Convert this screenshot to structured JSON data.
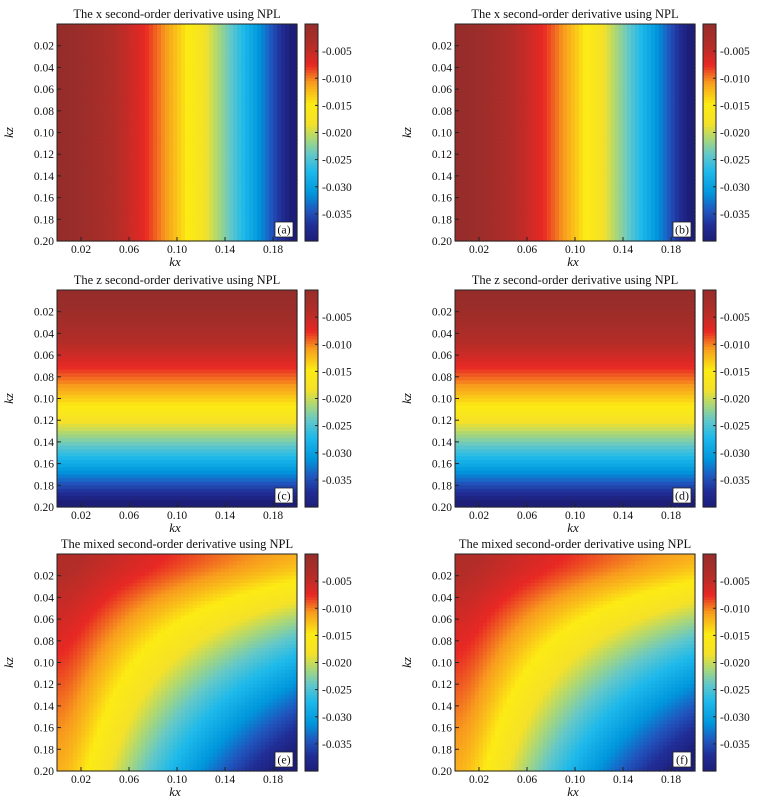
{
  "chart_data": [
    {
      "type": "heatmap",
      "title": "The x second-order derivative using NPL",
      "panel_label": "(a)",
      "variant": "x",
      "xlabel": "kx",
      "ylabel": "kz",
      "xlim": [
        0.0,
        0.2
      ],
      "ylim": [
        0.0,
        0.2
      ],
      "x_ticks": [
        0.02,
        0.06,
        0.1,
        0.14,
        0.18
      ],
      "y_ticks": [
        0.02,
        0.04,
        0.06,
        0.08,
        0.1,
        0.12,
        0.14,
        0.16,
        0.18,
        0.2
      ],
      "x_tick_labels": [
        "0.02",
        "0.06",
        "0.10",
        "0.14",
        "0.18"
      ],
      "y_tick_labels": [
        "0.02",
        "0.04",
        "0.06",
        "0.08",
        "0.10",
        "0.12",
        "0.14",
        "0.16",
        "0.18",
        "0.20"
      ],
      "y_axis_inverted": true,
      "value_range": [
        -0.04,
        0.0
      ],
      "colorbar_ticks": [
        -0.005,
        -0.01,
        -0.015,
        -0.02,
        -0.025,
        -0.03,
        -0.035
      ],
      "colorbar_tick_labels": [
        "-0.005",
        "-0.010",
        "-0.015",
        "-0.020",
        "-0.025",
        "-0.030",
        "-0.035"
      ],
      "colormap": "jet",
      "grid": false
    },
    {
      "type": "heatmap",
      "title": "The x second-order derivative using NPL",
      "panel_label": "(b)",
      "variant": "x",
      "xlabel": "kx",
      "ylabel": "kz",
      "xlim": [
        0.0,
        0.2
      ],
      "ylim": [
        0.0,
        0.2
      ],
      "x_ticks": [
        0.02,
        0.06,
        0.1,
        0.14,
        0.18
      ],
      "y_ticks": [
        0.02,
        0.04,
        0.06,
        0.08,
        0.1,
        0.12,
        0.14,
        0.16,
        0.18,
        0.2
      ],
      "x_tick_labels": [
        "0.02",
        "0.06",
        "0.10",
        "0.14",
        "0.18"
      ],
      "y_tick_labels": [
        "0.02",
        "0.04",
        "0.06",
        "0.08",
        "0.10",
        "0.12",
        "0.14",
        "0.16",
        "0.18",
        "0.20"
      ],
      "y_axis_inverted": true,
      "value_range": [
        -0.04,
        0.0
      ],
      "colorbar_ticks": [
        -0.005,
        -0.01,
        -0.015,
        -0.02,
        -0.025,
        -0.03,
        -0.035
      ],
      "colorbar_tick_labels": [
        "-0.005",
        "-0.010",
        "-0.015",
        "-0.020",
        "-0.025",
        "-0.030",
        "-0.035"
      ],
      "colormap": "jet",
      "grid": false
    },
    {
      "type": "heatmap",
      "title": "The z second-order derivative using NPL",
      "panel_label": "(c)",
      "variant": "z",
      "xlabel": "kx",
      "ylabel": "kz",
      "xlim": [
        0.0,
        0.2
      ],
      "ylim": [
        0.0,
        0.2
      ],
      "x_ticks": [
        0.02,
        0.06,
        0.1,
        0.14,
        0.18
      ],
      "y_ticks": [
        0.02,
        0.04,
        0.06,
        0.08,
        0.1,
        0.12,
        0.14,
        0.16,
        0.18,
        0.2
      ],
      "x_tick_labels": [
        "0.02",
        "0.06",
        "0.10",
        "0.14",
        "0.18"
      ],
      "y_tick_labels": [
        "0.02",
        "0.04",
        "0.06",
        "0.08",
        "0.10",
        "0.12",
        "0.14",
        "0.16",
        "0.18",
        "0.20"
      ],
      "y_axis_inverted": true,
      "value_range": [
        -0.04,
        0.0
      ],
      "colorbar_ticks": [
        -0.005,
        -0.01,
        -0.015,
        -0.02,
        -0.025,
        -0.03,
        -0.035
      ],
      "colorbar_tick_labels": [
        "-0.005",
        "-0.010",
        "-0.015",
        "-0.020",
        "-0.025",
        "-0.030",
        "-0.035"
      ],
      "colormap": "jet",
      "grid": false
    },
    {
      "type": "heatmap",
      "title": "The z second-order derivative using NPL",
      "panel_label": "(d)",
      "variant": "z",
      "xlabel": "kx",
      "ylabel": "kz",
      "xlim": [
        0.0,
        0.2
      ],
      "ylim": [
        0.0,
        0.2
      ],
      "x_ticks": [
        0.02,
        0.06,
        0.1,
        0.14,
        0.18
      ],
      "y_ticks": [
        0.02,
        0.04,
        0.06,
        0.08,
        0.1,
        0.12,
        0.14,
        0.16,
        0.18,
        0.2
      ],
      "x_tick_labels": [
        "0.02",
        "0.06",
        "0.10",
        "0.14",
        "0.18"
      ],
      "y_tick_labels": [
        "0.02",
        "0.04",
        "0.06",
        "0.08",
        "0.10",
        "0.12",
        "0.14",
        "0.16",
        "0.18",
        "0.20"
      ],
      "y_axis_inverted": true,
      "value_range": [
        -0.04,
        0.0
      ],
      "colorbar_ticks": [
        -0.005,
        -0.01,
        -0.015,
        -0.02,
        -0.025,
        -0.03,
        -0.035
      ],
      "colorbar_tick_labels": [
        "-0.005",
        "-0.010",
        "-0.015",
        "-0.020",
        "-0.025",
        "-0.030",
        "-0.035"
      ],
      "colormap": "jet",
      "grid": false
    },
    {
      "type": "heatmap",
      "title": "The mixed second-order derivative using NPL",
      "panel_label": "(e)",
      "variant": "mixed",
      "xlabel": "kx",
      "ylabel": "kz",
      "xlim": [
        0.0,
        0.2
      ],
      "ylim": [
        0.0,
        0.2
      ],
      "x_ticks": [
        0.02,
        0.06,
        0.1,
        0.14,
        0.18
      ],
      "y_ticks": [
        0.02,
        0.04,
        0.06,
        0.08,
        0.1,
        0.12,
        0.14,
        0.16,
        0.18,
        0.2
      ],
      "x_tick_labels": [
        "0.02",
        "0.06",
        "0.10",
        "0.14",
        "0.18"
      ],
      "y_tick_labels": [
        "0.02",
        "0.04",
        "0.06",
        "0.08",
        "0.10",
        "0.12",
        "0.14",
        "0.16",
        "0.18",
        "0.20"
      ],
      "y_axis_inverted": true,
      "value_range": [
        -0.04,
        0.0
      ],
      "colorbar_ticks": [
        -0.005,
        -0.01,
        -0.015,
        -0.02,
        -0.025,
        -0.03,
        -0.035
      ],
      "colorbar_tick_labels": [
        "-0.005",
        "-0.010",
        "-0.015",
        "-0.020",
        "-0.025",
        "-0.030",
        "-0.035"
      ],
      "colormap": "jet",
      "grid": false
    },
    {
      "type": "heatmap",
      "title": "The mixed second-order derivative using NPL",
      "panel_label": "(f)",
      "variant": "mixed",
      "xlabel": "kx",
      "ylabel": "kz",
      "xlim": [
        0.0,
        0.2
      ],
      "ylim": [
        0.0,
        0.2
      ],
      "x_ticks": [
        0.02,
        0.06,
        0.1,
        0.14,
        0.18
      ],
      "y_ticks": [
        0.02,
        0.04,
        0.06,
        0.08,
        0.1,
        0.12,
        0.14,
        0.16,
        0.18,
        0.2
      ],
      "x_tick_labels": [
        "0.02",
        "0.06",
        "0.10",
        "0.14",
        "0.18"
      ],
      "y_tick_labels": [
        "0.02",
        "0.04",
        "0.06",
        "0.08",
        "0.10",
        "0.12",
        "0.14",
        "0.16",
        "0.18",
        "0.20"
      ],
      "y_axis_inverted": true,
      "value_range": [
        -0.04,
        0.0
      ],
      "colorbar_ticks": [
        -0.005,
        -0.01,
        -0.015,
        -0.02,
        -0.025,
        -0.03,
        -0.035
      ],
      "colorbar_tick_labels": [
        "-0.005",
        "-0.010",
        "-0.015",
        "-0.020",
        "-0.025",
        "-0.030",
        "-0.035"
      ],
      "colormap": "jet",
      "grid": false
    }
  ]
}
